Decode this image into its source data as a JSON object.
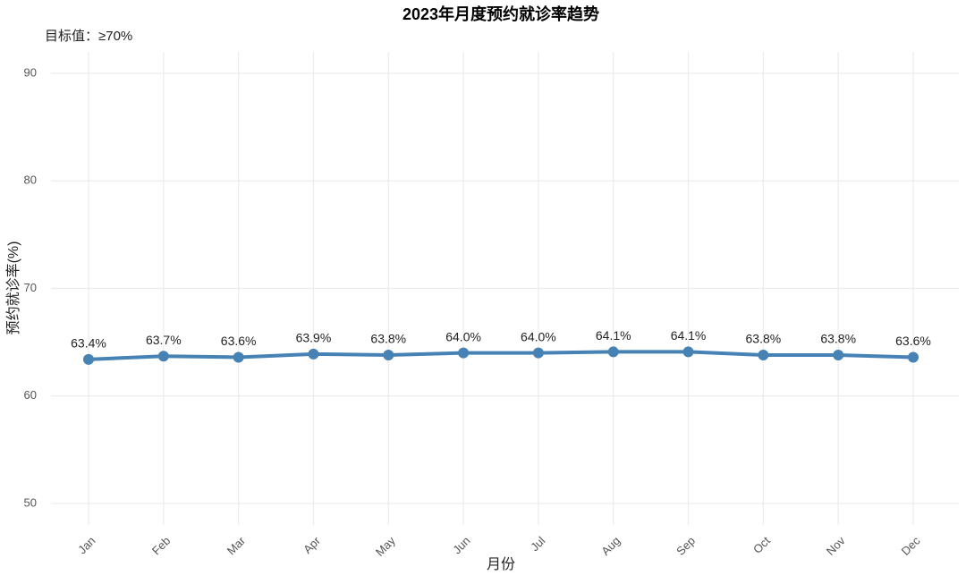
{
  "chart_data": {
    "type": "line",
    "title": "2023年月度预约就诊率趋势",
    "subtitle": "目标值：≥70%",
    "x_label": "月份",
    "y_label": "预约就诊率(%)",
    "categories": [
      "Jan",
      "Feb",
      "Mar",
      "Apr",
      "May",
      "Jun",
      "Jul",
      "Aug",
      "Sep",
      "Oct",
      "Nov",
      "Dec"
    ],
    "series": [
      {
        "name": "预约就诊率",
        "color": "#4682b4",
        "values": [
          63.4,
          63.7,
          63.6,
          63.9,
          63.8,
          64.0,
          64.0,
          64.1,
          64.1,
          63.8,
          63.8,
          63.6
        ],
        "value_labels": [
          "63.4%",
          "63.7%",
          "63.6%",
          "63.9%",
          "63.8%",
          "64.0%",
          "64.0%",
          "64.1%",
          "64.1%",
          "63.8%",
          "63.8%",
          "63.6%"
        ]
      }
    ],
    "ylim": [
      48,
      92
    ],
    "yticks": [
      50,
      60,
      70,
      80,
      90
    ],
    "grid": true
  }
}
